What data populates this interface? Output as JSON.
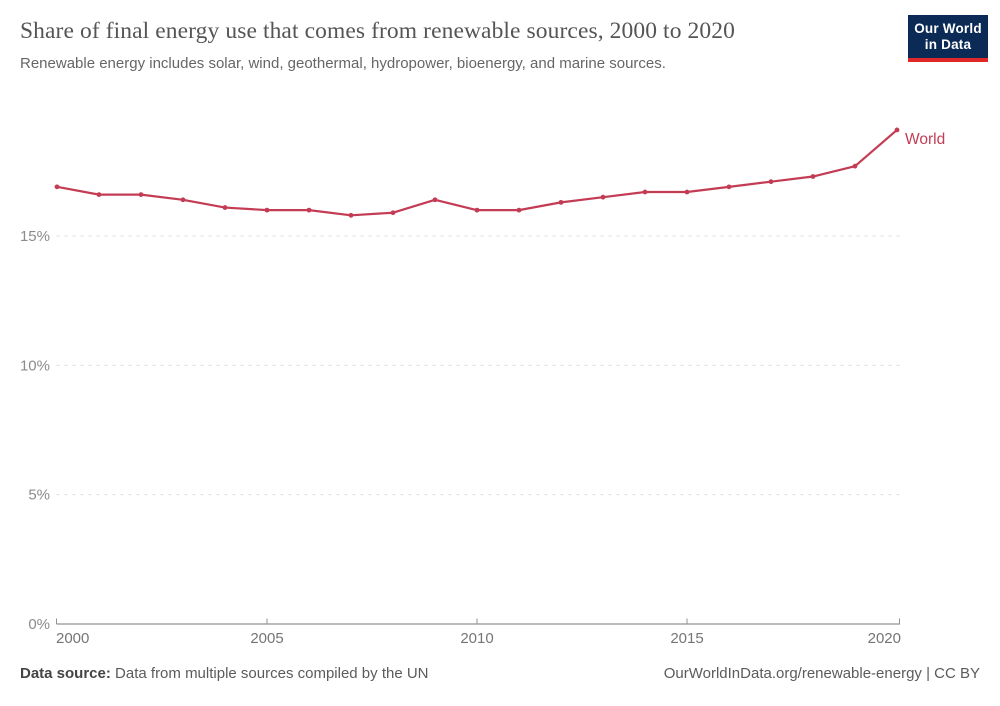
{
  "header": {
    "title": "Share of final energy use that comes from renewable sources, 2000 to 2020",
    "subtitle": "Renewable energy includes solar, wind, geothermal, hydropower, bioenergy, and marine sources.",
    "logo": {
      "line1": "Our World",
      "line2": "in Data",
      "bg_color": "#0b2a55",
      "accent_color": "#e02828"
    }
  },
  "chart_data": {
    "type": "line",
    "title": "Share of final energy use that comes from renewable sources, 2000 to 2020",
    "x": [
      2000,
      2001,
      2002,
      2003,
      2004,
      2005,
      2006,
      2007,
      2008,
      2009,
      2010,
      2011,
      2012,
      2013,
      2014,
      2015,
      2016,
      2017,
      2018,
      2019,
      2020
    ],
    "series": [
      {
        "name": "World",
        "color": "#c33c54",
        "values": [
          16.9,
          16.6,
          16.6,
          16.4,
          16.1,
          16.0,
          16.0,
          15.8,
          15.9,
          16.4,
          16.0,
          16.0,
          16.3,
          16.5,
          16.7,
          16.7,
          16.9,
          17.1,
          17.3,
          17.7,
          19.1
        ]
      }
    ],
    "xlabel": "",
    "ylabel": "",
    "xlim": [
      2000,
      2020
    ],
    "ylim": [
      0,
      20
    ],
    "x_ticks": [
      2000,
      2005,
      2010,
      2015,
      2020
    ],
    "y_ticks": [
      0,
      5,
      10,
      15
    ],
    "y_tick_labels": [
      "0%",
      "5%",
      "10%",
      "15%"
    ],
    "grid": "horizontal-dashed",
    "legend": "line-end-label"
  },
  "footer": {
    "source_label": "Data source:",
    "source_text": "Data from multiple sources compiled by the UN",
    "credit": "OurWorldInData.org/renewable-energy | CC BY"
  }
}
